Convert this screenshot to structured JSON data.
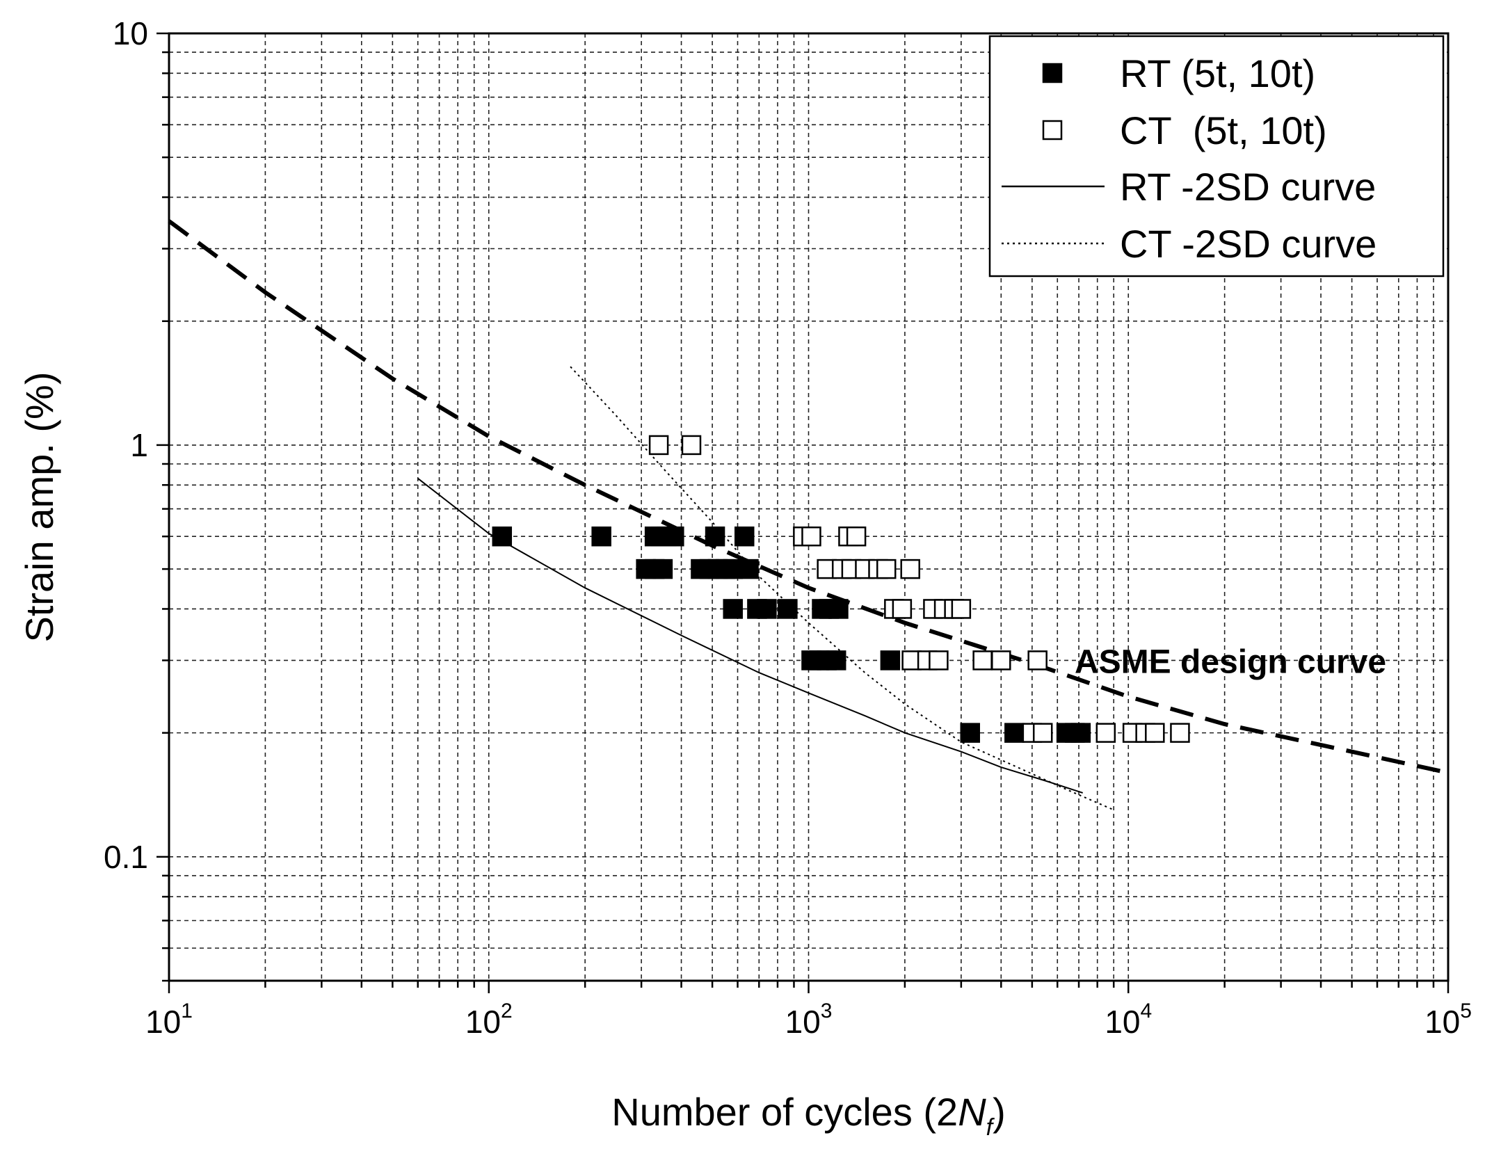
{
  "chart_data": {
    "type": "scatter",
    "xscale": "log",
    "yscale": "log",
    "xlim": [
      10,
      100000
    ],
    "ylim": [
      0.05,
      10
    ],
    "grid": true,
    "xlabel": {
      "main": "Number of cycles (2",
      "italic": "N",
      "sub": "f",
      "close": ")"
    },
    "ylabel": "Strain amp. (%)",
    "x_ticks": [
      {
        "value": 10,
        "base": "10",
        "exp": "1"
      },
      {
        "value": 100,
        "base": "10",
        "exp": "2"
      },
      {
        "value": 1000,
        "base": "10",
        "exp": "3"
      },
      {
        "value": 10000,
        "base": "10",
        "exp": "4"
      },
      {
        "value": 100000,
        "base": "10",
        "exp": "5"
      }
    ],
    "y_ticks": [
      {
        "value": 0.1,
        "label": "0.1"
      },
      {
        "value": 1,
        "label": "1"
      },
      {
        "value": 10,
        "label": "10"
      }
    ],
    "legend_position": "top-right",
    "legend": [
      {
        "label": "RT (5t, 10t)",
        "marker": "filled-square"
      },
      {
        "label": "CT  (5t, 10t)",
        "marker": "open-square"
      },
      {
        "label": "RT -2SD curve",
        "line": "solid"
      },
      {
        "label": "CT -2SD curve",
        "line": "dotted"
      }
    ],
    "annotations": [
      {
        "text": "ASME design curve",
        "x": 18000,
        "y": 0.3
      }
    ],
    "series": [
      {
        "name": "RT (5t, 10t)",
        "marker": "filled-square",
        "points": [
          [
            110,
            0.6
          ],
          [
            225,
            0.6
          ],
          [
            330,
            0.6
          ],
          [
            345,
            0.6
          ],
          [
            360,
            0.6
          ],
          [
            380,
            0.6
          ],
          [
            510,
            0.6
          ],
          [
            630,
            0.6
          ],
          [
            310,
            0.5
          ],
          [
            330,
            0.5
          ],
          [
            350,
            0.5
          ],
          [
            460,
            0.5
          ],
          [
            490,
            0.5
          ],
          [
            520,
            0.5
          ],
          [
            550,
            0.5
          ],
          [
            580,
            0.5
          ],
          [
            650,
            0.5
          ],
          [
            580,
            0.4
          ],
          [
            690,
            0.4
          ],
          [
            740,
            0.4
          ],
          [
            860,
            0.4
          ],
          [
            1100,
            0.4
          ],
          [
            1160,
            0.4
          ],
          [
            1240,
            0.4
          ],
          [
            1020,
            0.3
          ],
          [
            1080,
            0.3
          ],
          [
            1140,
            0.3
          ],
          [
            1220,
            0.3
          ],
          [
            1800,
            0.3
          ],
          [
            3200,
            0.2
          ],
          [
            4400,
            0.2
          ],
          [
            6400,
            0.2
          ],
          [
            6800,
            0.2
          ],
          [
            7100,
            0.2
          ]
        ]
      },
      {
        "name": "CT  (5t, 10t)",
        "marker": "open-square",
        "points": [
          [
            340,
            1.0
          ],
          [
            430,
            1.0
          ],
          [
            960,
            0.6
          ],
          [
            1020,
            0.6
          ],
          [
            1330,
            0.6
          ],
          [
            1410,
            0.6
          ],
          [
            1140,
            0.5
          ],
          [
            1270,
            0.5
          ],
          [
            1360,
            0.5
          ],
          [
            1500,
            0.5
          ],
          [
            1650,
            0.5
          ],
          [
            1750,
            0.5
          ],
          [
            2080,
            0.5
          ],
          [
            1850,
            0.4
          ],
          [
            1960,
            0.4
          ],
          [
            2450,
            0.4
          ],
          [
            2650,
            0.4
          ],
          [
            2850,
            0.4
          ],
          [
            3000,
            0.4
          ],
          [
            2100,
            0.3
          ],
          [
            2350,
            0.3
          ],
          [
            2550,
            0.3
          ],
          [
            3500,
            0.3
          ],
          [
            4000,
            0.3
          ],
          [
            5200,
            0.3
          ],
          [
            5000,
            0.2
          ],
          [
            5400,
            0.2
          ],
          [
            8500,
            0.2
          ],
          [
            10300,
            0.2
          ],
          [
            11300,
            0.2
          ],
          [
            12100,
            0.2
          ],
          [
            14500,
            0.2
          ]
        ]
      },
      {
        "name": "RT -2SD curve",
        "line": "solid",
        "points": [
          [
            60,
            0.83
          ],
          [
            100,
            0.61
          ],
          [
            200,
            0.45
          ],
          [
            400,
            0.345
          ],
          [
            700,
            0.28
          ],
          [
            1000,
            0.25
          ],
          [
            1500,
            0.22
          ],
          [
            2000,
            0.2
          ],
          [
            3000,
            0.18
          ],
          [
            4000,
            0.165
          ],
          [
            5500,
            0.153
          ],
          [
            7200,
            0.143
          ]
        ]
      },
      {
        "name": "CT -2SD curve",
        "line": "dotted",
        "points": [
          [
            180,
            1.55
          ],
          [
            250,
            1.18
          ],
          [
            350,
            0.88
          ],
          [
            500,
            0.65
          ],
          [
            700,
            0.48
          ],
          [
            1000,
            0.37
          ],
          [
            1500,
            0.28
          ],
          [
            2000,
            0.235
          ],
          [
            3000,
            0.19
          ],
          [
            4500,
            0.165
          ],
          [
            6500,
            0.145
          ],
          [
            9000,
            0.13
          ]
        ]
      },
      {
        "name": "ASME design curve",
        "line": "dashed",
        "points": [
          [
            10,
            3.5
          ],
          [
            20,
            2.35
          ],
          [
            50,
            1.45
          ],
          [
            100,
            1.05
          ],
          [
            200,
            0.8
          ],
          [
            500,
            0.57
          ],
          [
            1000,
            0.45
          ],
          [
            2000,
            0.37
          ],
          [
            5000,
            0.295
          ],
          [
            10000,
            0.245
          ],
          [
            20000,
            0.21
          ],
          [
            50000,
            0.18
          ],
          [
            100000,
            0.16
          ]
        ]
      }
    ]
  }
}
